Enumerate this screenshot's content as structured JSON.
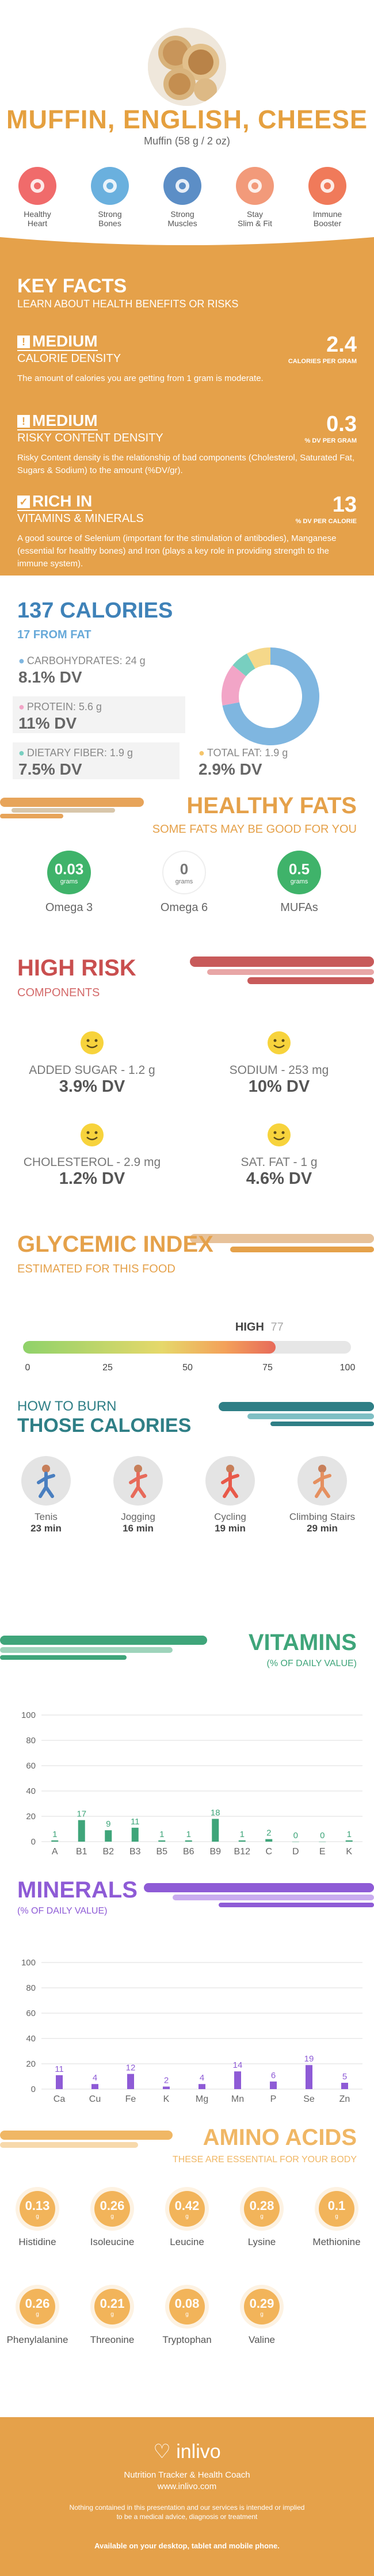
{
  "header": {
    "title": "MUFFIN, ENGLISH, CHEESE",
    "subtitle": "Muffin (58 g / 2 oz)",
    "benefits": [
      {
        "label": "Healthy\nHeart",
        "color": "#f06b6b",
        "icon": "heart-icon"
      },
      {
        "label": "Strong\nBones",
        "color": "#6ab0de",
        "icon": "bone-icon"
      },
      {
        "label": "Strong\nMuscles",
        "color": "#5c8ec6",
        "icon": "muscle-icon"
      },
      {
        "label": "Stay\nSlim & Fit",
        "color": "#f29a7a",
        "icon": "waist-icon"
      },
      {
        "label": "Immune\nBooster",
        "color": "#f07a5a",
        "icon": "shield-icon"
      }
    ]
  },
  "keyfacts": {
    "title": "KEY FACTS",
    "subtitle": "LEARN ABOUT HEALTH BENEFITS OR RISKS",
    "facts": [
      {
        "level": "MEDIUM",
        "name": "CALORIE DENSITY",
        "value": "2.4",
        "unit": "CALORIES PER GRAM",
        "desc": "The amount of calories you are getting from 1 gram is moderate."
      },
      {
        "level": "MEDIUM",
        "name": "RISKY CONTENT DENSITY",
        "value": "0.3",
        "unit": "% DV PER GRAM",
        "desc": "Risky Content density is the relationship of bad components (Cholesterol, Saturated Fat, Sugars & Sodium) to the amount (%DV/gr)."
      },
      {
        "level": "RICH IN",
        "name": "VITAMINS & MINERALS",
        "value": "13",
        "unit": "% DV PER CALORIE",
        "desc": "A good source of Selenium (important for the stimulation of antibodies), Manganese (essential for healthy bones) and Iron (plays a key role in providing strength to the immune system)."
      }
    ]
  },
  "calories": {
    "title": "137 CALORIES",
    "subtitle": "17 FROM FAT",
    "nutrients": [
      {
        "name": "CARBOHYDRATES: 24 g",
        "dv": "8.1% DV",
        "color": "#7fb6e0"
      },
      {
        "name": "PROTEIN: 5.6 g",
        "dv": "11% DV",
        "color": "#f2a5c7"
      },
      {
        "name": "DIETARY FIBER: 1.9 g",
        "dv": "7.5% DV",
        "color": "#78cfc0"
      },
      {
        "name": "TOTAL FAT: 1.9 g",
        "dv": "2.9% DV",
        "color": "#f5c56a"
      }
    ],
    "donut": [
      {
        "value": 72,
        "color": "#7fb6e0"
      },
      {
        "value": 14,
        "color": "#f2a5c7"
      },
      {
        "value": 6,
        "color": "#78cfc0"
      },
      {
        "value": 8,
        "color": "#f5d88a"
      }
    ]
  },
  "fats": {
    "title": "HEALTHY FATS",
    "subtitle": "SOME FATS MAY BE GOOD FOR YOU",
    "items": [
      {
        "value": "0.03",
        "unit": "grams",
        "name": "Omega 3",
        "color": "#3fb36a"
      },
      {
        "value": "0",
        "unit": "grams",
        "name": "Omega 6",
        "color": "#dddddd"
      },
      {
        "value": "0.5",
        "unit": "grams",
        "name": "MUFAs",
        "color": "#3fb36a"
      }
    ]
  },
  "risk": {
    "title": "HIGH RISK",
    "subtitle": "COMPONENTS",
    "items": [
      {
        "label": "ADDED SUGAR - 1.2 g",
        "dv": "3.9% DV"
      },
      {
        "label": "SODIUM - 253 mg",
        "dv": "10% DV"
      },
      {
        "label": "CHOLESTEROL - 2.9 mg",
        "dv": "1.2% DV"
      },
      {
        "label": "SAT. FAT - 1 g",
        "dv": "4.6% DV"
      }
    ]
  },
  "glycemic": {
    "title": "GLYCEMIC INDEX",
    "subtitle": "ESTIMATED FOR THIS FOOD",
    "level": "HIGH",
    "value": 77,
    "value_text": "77",
    "ticks": [
      "0",
      "25",
      "50",
      "75",
      "100"
    ]
  },
  "burn": {
    "title_small": "HOW TO BURN",
    "title": "THOSE CALORIES",
    "activities": [
      {
        "name": "Tenis",
        "time": "23 min",
        "icon": "tennis-icon"
      },
      {
        "name": "Jogging",
        "time": "16 min",
        "icon": "jogging-icon"
      },
      {
        "name": "Cycling",
        "time": "19 min",
        "icon": "cycling-icon"
      },
      {
        "name": "Climbing Stairs",
        "time": "29 min",
        "icon": "stairs-icon"
      }
    ]
  },
  "vitamins": {
    "title": "VITAMINS",
    "subtitle": "(% OF DAILY VALUE)",
    "color": "#3fa57a",
    "yticks": [
      "100",
      "80",
      "60",
      "40",
      "20",
      "0"
    ],
    "chart_data": {
      "type": "bar",
      "categories": [
        "A",
        "B1",
        "B2",
        "B3",
        "B5",
        "B6",
        "B9",
        "B12",
        "C",
        "D",
        "E",
        "K"
      ],
      "values": [
        1,
        17,
        9,
        11,
        1,
        1,
        18,
        1,
        2,
        0,
        0,
        1
      ],
      "labels": [
        "1",
        "17",
        "9",
        "11",
        "1",
        "1",
        "18",
        "1",
        "2",
        "0",
        "0",
        "1"
      ],
      "ylim": [
        0,
        100
      ],
      "grid": true
    }
  },
  "minerals": {
    "title": "MINERALS",
    "subtitle": "(% OF DAILY VALUE)",
    "color": "#8e5bd6",
    "yticks": [
      "100",
      "80",
      "60",
      "40",
      "20",
      "0"
    ],
    "chart_data": {
      "type": "bar",
      "categories": [
        "Ca",
        "Cu",
        "Fe",
        "K",
        "Mg",
        "Mn",
        "P",
        "Se",
        "Zn"
      ],
      "values": [
        11,
        4,
        12,
        2,
        4,
        14,
        6,
        19,
        5
      ],
      "labels": [
        "11",
        "4",
        "12",
        "2",
        "4",
        "14",
        "6",
        "19",
        "5"
      ],
      "ylim": [
        0,
        100
      ],
      "grid": true
    }
  },
  "amino": {
    "title": "AMINO ACIDS",
    "subtitle": "THESE ARE ESSENTIAL FOR YOUR BODY",
    "items": [
      {
        "value": "0.13",
        "unit": "g",
        "name": "Histidine"
      },
      {
        "value": "0.26",
        "unit": "g",
        "name": "Isoleucine"
      },
      {
        "value": "0.42",
        "unit": "g",
        "name": "Leucine"
      },
      {
        "value": "0.28",
        "unit": "g",
        "name": "Lysine"
      },
      {
        "value": "0.1",
        "unit": "g",
        "name": "Methionine"
      },
      {
        "value": "0.26",
        "unit": "g",
        "name": "Phenylalanine"
      },
      {
        "value": "0.21",
        "unit": "g",
        "name": "Threonine"
      },
      {
        "value": "0.08",
        "unit": "g",
        "name": "Tryptophan"
      },
      {
        "value": "0.29",
        "unit": "g",
        "name": "Valine"
      }
    ]
  },
  "footer": {
    "brand": "inlivo",
    "tagline": "Nutrition Tracker & Health Coach",
    "url": "www.inlivo.com",
    "disclaimer1": "Nothing contained in this presentation and our services is intended or implied",
    "disclaimer2": "to be a medical advice, diagnosis or treatment",
    "available": "Available on your desktop, tablet and mobile phone."
  }
}
